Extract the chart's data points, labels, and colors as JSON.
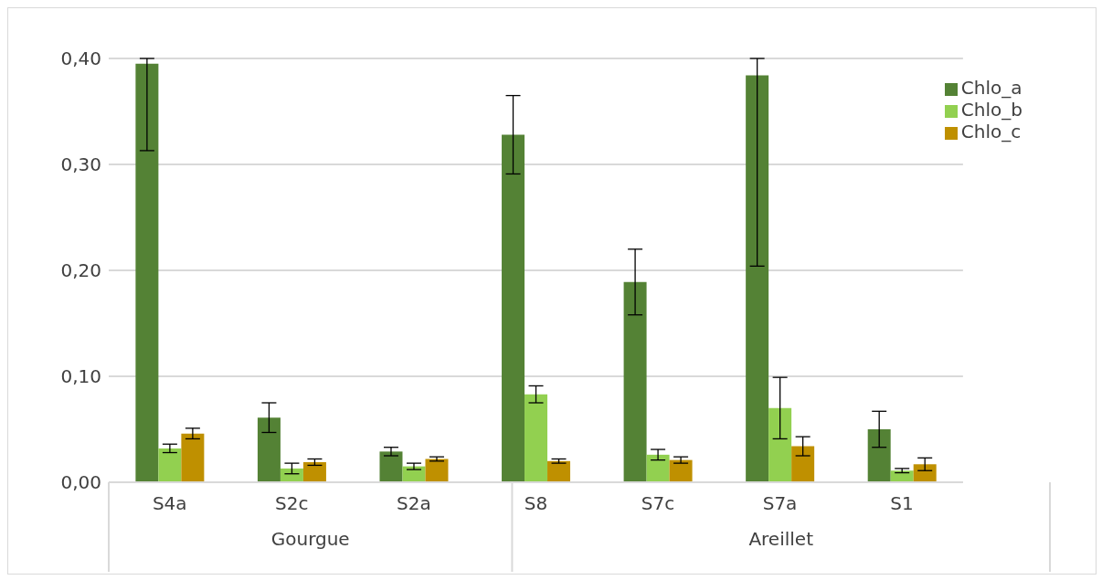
{
  "chart_data": {
    "type": "bar",
    "categories": [
      "S4a",
      "S2c",
      "S2a",
      "S8",
      "S7c",
      "S7a",
      "S1"
    ],
    "series": [
      {
        "name": "Chlo_a",
        "color": "#548235",
        "values": [
          0.395,
          0.061,
          0.029,
          0.328,
          0.189,
          0.384,
          0.05
        ],
        "errors": [
          [
            0.313,
            0.4
          ],
          0.014,
          0.004,
          0.037,
          0.031,
          [
            0.204,
            0.4
          ],
          0.017
        ]
      },
      {
        "name": "Chlo_b",
        "color": "#92d050",
        "values": [
          0.032,
          0.013,
          0.015,
          0.083,
          0.026,
          0.07,
          0.011
        ],
        "errors": [
          0.004,
          0.005,
          0.003,
          0.008,
          0.005,
          0.029,
          0.002
        ]
      },
      {
        "name": "Chlo_c",
        "color": "#bf9000",
        "values": [
          0.046,
          0.019,
          0.022,
          0.02,
          0.021,
          0.034,
          0.017
        ],
        "errors": [
          0.005,
          0.003,
          0.002,
          0.002,
          0.003,
          0.009,
          0.006
        ]
      }
    ],
    "ylim": [
      0,
      0.4
    ],
    "yticks": [
      {
        "value": 0,
        "label": "0,00"
      },
      {
        "value": 0.1,
        "label": "0,10"
      },
      {
        "value": 0.2,
        "label": "0,20"
      },
      {
        "value": 0.3,
        "label": "0,30"
      },
      {
        "value": 0.4,
        "label": "0,40"
      }
    ],
    "grid": "y",
    "legend": "top right",
    "annotations": [
      "Gourgue",
      "Areillet"
    ]
  }
}
